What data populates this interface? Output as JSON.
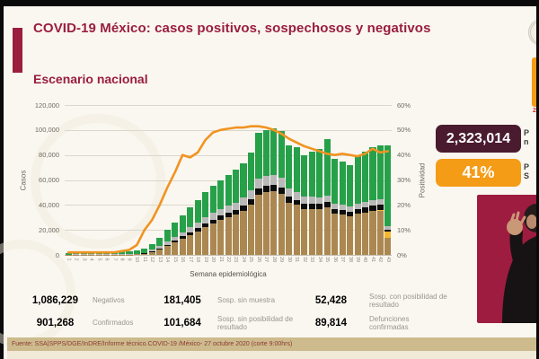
{
  "header": {
    "title": "COVID-19 México: casos positivos, sospechosos y negativos",
    "subtitle": "Escenario nacional"
  },
  "top_right": {
    "date_fragment": "2"
  },
  "stat_boxes": {
    "total_tested": "2,323,014",
    "positivity": "41%",
    "clipped_label_top": [
      "P",
      "n"
    ],
    "clipped_label_bottom": [
      "P",
      "S"
    ]
  },
  "chart_data": {
    "type": "bar",
    "stacked": true,
    "xlabel": "Semana epidemiológica",
    "ylabel_left": "Casos",
    "ylabel_right": "Positividad",
    "ylim_left": [
      0,
      120000
    ],
    "ylim_right_pct": [
      0,
      60
    ],
    "y_ticks_left": [
      "0",
      "20,000",
      "40,000",
      "60,000",
      "80,000",
      "100,000",
      "120,000"
    ],
    "y_ticks_right": [
      "0%",
      "10%",
      "20%",
      "30%",
      "40%",
      "50%",
      "60%"
    ],
    "grid": true,
    "categories": [
      1,
      2,
      3,
      4,
      5,
      6,
      7,
      8,
      9,
      10,
      11,
      12,
      13,
      14,
      15,
      16,
      17,
      18,
      19,
      20,
      21,
      22,
      23,
      24,
      25,
      26,
      27,
      28,
      29,
      30,
      31,
      32,
      33,
      34,
      35,
      36,
      37,
      38,
      39,
      40,
      41,
      42,
      43
    ],
    "series": [
      {
        "name": "Confirmados",
        "color": "#ab8851",
        "values": [
          100,
          150,
          150,
          200,
          200,
          200,
          200,
          250,
          250,
          400,
          1000,
          2500,
          4500,
          7000,
          10000,
          13000,
          16000,
          19000,
          22000,
          25000,
          28000,
          30000,
          32000,
          35000,
          40000,
          48000,
          50000,
          51000,
          49000,
          42000,
          40000,
          37000,
          37000,
          37000,
          38000,
          33000,
          32000,
          31000,
          33000,
          34000,
          35000,
          35000,
          14000
        ]
      },
      {
        "name": "Sosp. con posibilidad de resultado",
        "color": "#f4b72e",
        "values": [
          0,
          0,
          0,
          0,
          0,
          0,
          0,
          0,
          0,
          0,
          0,
          0,
          0,
          0,
          0,
          0,
          0,
          0,
          0,
          0,
          0,
          0,
          0,
          0,
          0,
          0,
          0,
          0,
          0,
          0,
          0,
          0,
          0,
          0,
          0,
          0,
          0,
          0,
          0,
          0,
          0,
          1000,
          5000
        ]
      },
      {
        "name": "Sosp. sin posibilidad de resultado",
        "color": "#0d0d0d",
        "values": [
          0,
          0,
          0,
          0,
          0,
          0,
          0,
          0,
          0,
          100,
          200,
          500,
          800,
          1000,
          1500,
          1800,
          2200,
          2500,
          3000,
          3200,
          3500,
          3800,
          4000,
          4200,
          4500,
          5000,
          5200,
          5200,
          5000,
          4500,
          4200,
          4000,
          4000,
          4000,
          4200,
          3800,
          3600,
          3500,
          3800,
          4000,
          4500,
          4500,
          1500
        ]
      },
      {
        "name": "Sosp. sin muestra",
        "color": "#b9b9b9",
        "values": [
          200,
          300,
          300,
          300,
          300,
          300,
          300,
          300,
          300,
          400,
          500,
          1000,
          1700,
          2500,
          3000,
          3500,
          4000,
          4500,
          5000,
          5500,
          5500,
          6000,
          6000,
          6500,
          7000,
          8000,
          8000,
          8000,
          7500,
          6500,
          6000,
          5500,
          5500,
          5000,
          5500,
          4500,
          4500,
          4000,
          4500,
          4500,
          4500,
          4000,
          2500
        ]
      },
      {
        "name": "Negativos",
        "color": "#27a04a",
        "values": [
          1200,
          2100,
          2100,
          2400,
          2500,
          2500,
          2500,
          2400,
          2400,
          2600,
          3300,
          5000,
          7000,
          9500,
          11500,
          13700,
          15800,
          18000,
          20000,
          21300,
          23000,
          24200,
          26000,
          27300,
          30500,
          37000,
          36800,
          36800,
          37500,
          35000,
          35800,
          33500,
          36500,
          39000,
          45300,
          35700,
          34900,
          33500,
          38700,
          40500,
          42000,
          43500,
          65000
        ]
      }
    ],
    "line_series": {
      "name": "Positividad",
      "color": "#f19322",
      "values_pct": [
        1,
        1,
        1,
        1,
        1,
        1,
        1,
        1.5,
        2,
        4,
        10,
        14,
        20,
        27,
        33,
        40,
        39,
        41,
        46,
        49,
        50,
        50.5,
        51,
        51,
        51.5,
        51.5,
        51,
        50,
        48.5,
        46.5,
        45,
        43.5,
        42.5,
        41.5,
        40.5,
        40,
        40.5,
        40,
        39.5,
        40.5,
        42.5,
        41,
        41.5
      ]
    }
  },
  "legend": [
    {
      "value": "1,086,229",
      "label": "Negativos",
      "color": "#27a04a",
      "text_color": "#ffffff"
    },
    {
      "value": "181,405",
      "label": "Sosp. sin muestra",
      "color": "#b9b9b9",
      "text_color": "#1c1c1c"
    },
    {
      "value": "52,428",
      "label": "Sosp. con posibilidad de resultado",
      "color": "#f4b72e",
      "text_color": "#4a1b2e"
    },
    {
      "value": "901,268",
      "label": "Confirmados",
      "color": "#ab8851",
      "text_color": "#ffffff"
    },
    {
      "value": "101,684",
      "label": "Sosp. sin posibilidad de resultado",
      "color": "#000000",
      "text_color": "#ffffff"
    },
    {
      "value": "89,814",
      "label": "Defunciones confirmadas",
      "color": "#6672d8",
      "text_color": "#ffffff"
    }
  ],
  "footer": {
    "source": "Fuente: SSA|SPPS/DGE/InDRE/Informe técnico.COVID-19 /México- 27 octubre 2020 (corte 9:00hrs)"
  }
}
